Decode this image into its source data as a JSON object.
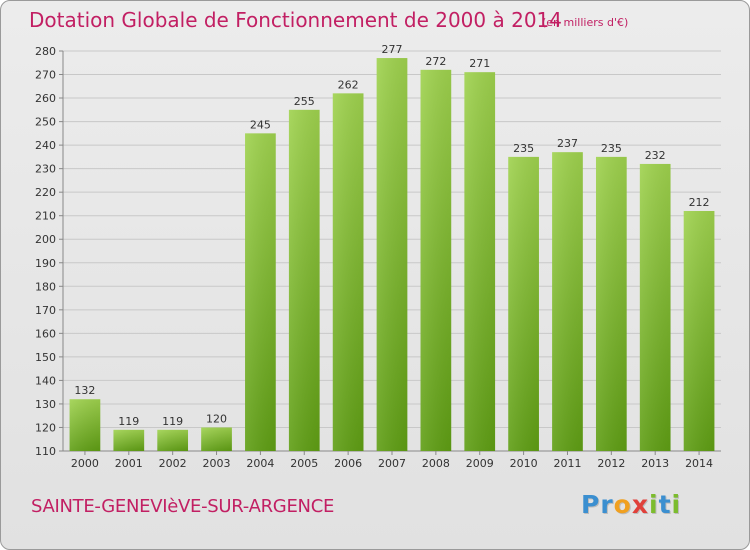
{
  "header": {
    "title": "Dotation Globale de Fonctionnement de 2000 à 2014",
    "unit": "(en milliers d'€)"
  },
  "footer": {
    "commune": "SAINTE-GENEVIèVE-SUR-ARGENCE",
    "logo": [
      {
        "char": "P",
        "color": "#3b8fd0"
      },
      {
        "char": "r",
        "color": "#3b8fd0"
      },
      {
        "char": "o",
        "color": "#f0a020"
      },
      {
        "char": "x",
        "color": "#e0403a"
      },
      {
        "char": "i",
        "color": "#7cbc2e"
      },
      {
        "char": "t",
        "color": "#3b8fd0"
      },
      {
        "char": "i",
        "color": "#7cbc2e"
      }
    ]
  },
  "chart_data": {
    "type": "bar",
    "title": "Dotation Globale de Fonctionnement de 2000 à 2014",
    "subtitle": "(en milliers d'€)",
    "categories": [
      "2000",
      "2001",
      "2002",
      "2003",
      "2004",
      "2005",
      "2006",
      "2007",
      "2008",
      "2009",
      "2010",
      "2011",
      "2012",
      "2013",
      "2014"
    ],
    "values": [
      132,
      119,
      119,
      120,
      245,
      255,
      262,
      277,
      272,
      271,
      235,
      237,
      235,
      232,
      212
    ],
    "ylim": [
      110,
      280
    ],
    "yticks": [
      110,
      120,
      130,
      140,
      150,
      160,
      170,
      180,
      190,
      200,
      210,
      220,
      230,
      240,
      250,
      260,
      270,
      280
    ],
    "grid": true,
    "bar_color_top": "#9fd24e",
    "bar_color_bottom": "#5f9e14"
  }
}
